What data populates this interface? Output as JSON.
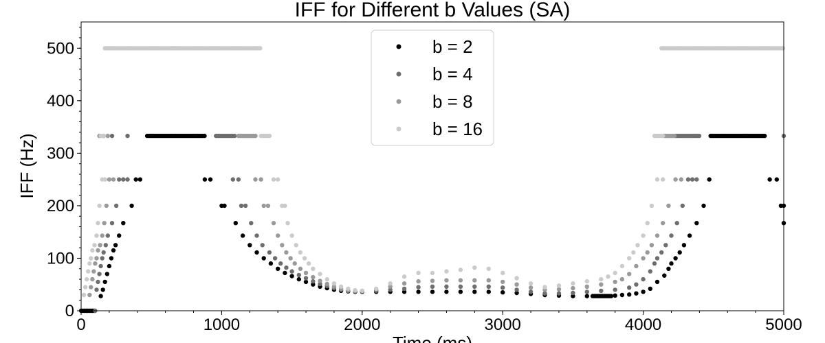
{
  "chart_data": {
    "type": "scatter",
    "title": "IFF for Different b Values (SA)",
    "xlabel": "Time (ms)",
    "ylabel": "IFF (Hz)",
    "xlim": [
      0,
      5000
    ],
    "ylim": [
      0,
      550
    ],
    "xticks": [
      0,
      1000,
      2000,
      3000,
      4000,
      5000
    ],
    "yticks": [
      0,
      100,
      200,
      300,
      400,
      500
    ],
    "grid": false,
    "legend_position": "top-center",
    "series": [
      {
        "name": "b = 2",
        "color": "#000000",
        "segments": [
          {
            "x0": 0,
            "x1": 100,
            "y": 0
          },
          {
            "x0": 470,
            "x1": 880,
            "y": 333
          },
          {
            "x0": 3640,
            "x1": 3780,
            "y": 28
          },
          {
            "x0": 4480,
            "x1": 4870,
            "y": 333
          }
        ],
        "points": [
          [
            140,
            28
          ],
          [
            155,
            40
          ],
          [
            170,
            55
          ],
          [
            185,
            70
          ],
          [
            200,
            85
          ],
          [
            215,
            100
          ],
          [
            230,
            115
          ],
          [
            245,
            125
          ],
          [
            270,
            143
          ],
          [
            300,
            167
          ],
          [
            360,
            200
          ],
          [
            390,
            250
          ],
          [
            420,
            250
          ],
          [
            880,
            250
          ],
          [
            920,
            250
          ],
          [
            1000,
            200
          ],
          [
            1020,
            200
          ],
          [
            1100,
            167
          ],
          [
            1150,
            143
          ],
          [
            1200,
            125
          ],
          [
            1250,
            111
          ],
          [
            1300,
            100
          ],
          [
            1350,
            90
          ],
          [
            1400,
            80
          ],
          [
            1450,
            72
          ],
          [
            1500,
            66
          ],
          [
            1550,
            60
          ],
          [
            1600,
            55
          ],
          [
            1650,
            50
          ],
          [
            1700,
            46
          ],
          [
            1750,
            43
          ],
          [
            1800,
            40
          ],
          [
            1850,
            38
          ],
          [
            1900,
            37
          ],
          [
            1950,
            36
          ],
          [
            2000,
            36
          ],
          [
            2100,
            36
          ],
          [
            2200,
            36
          ],
          [
            2300,
            36
          ],
          [
            2400,
            36
          ],
          [
            2500,
            36
          ],
          [
            2600,
            36
          ],
          [
            2700,
            36
          ],
          [
            2800,
            36
          ],
          [
            2900,
            36
          ],
          [
            3000,
            35
          ],
          [
            3100,
            34
          ],
          [
            3200,
            32
          ],
          [
            3300,
            30
          ],
          [
            3400,
            29
          ],
          [
            3500,
            28
          ],
          [
            3600,
            28
          ],
          [
            3800,
            29
          ],
          [
            3850,
            30
          ],
          [
            3900,
            31
          ],
          [
            3950,
            33
          ],
          [
            4000,
            36
          ],
          [
            4050,
            42
          ],
          [
            4100,
            55
          ],
          [
            4150,
            67
          ],
          [
            4180,
            80
          ],
          [
            4200,
            90
          ],
          [
            4230,
            100
          ],
          [
            4260,
            111
          ],
          [
            4290,
            125
          ],
          [
            4330,
            143
          ],
          [
            4380,
            167
          ],
          [
            4430,
            200
          ],
          [
            4470,
            250
          ],
          [
            4900,
            250
          ],
          [
            4950,
            250
          ],
          [
            4980,
            200
          ],
          [
            5000,
            200
          ],
          [
            5000,
            167
          ]
        ]
      },
      {
        "name": "b = 4",
        "color": "#6e6e6e",
        "segments": [
          {
            "x0": 960,
            "x1": 1100,
            "y": 333
          },
          {
            "x0": 4230,
            "x1": 4400,
            "y": 333
          }
        ],
        "points": [
          [
            100,
            0
          ],
          [
            110,
            40
          ],
          [
            120,
            55
          ],
          [
            130,
            70
          ],
          [
            140,
            85
          ],
          [
            150,
            100
          ],
          [
            160,
            111
          ],
          [
            175,
            125
          ],
          [
            190,
            143
          ],
          [
            220,
            167
          ],
          [
            250,
            200
          ],
          [
            270,
            250
          ],
          [
            300,
            250
          ],
          [
            330,
            250
          ],
          [
            160,
            333
          ],
          [
            220,
            333
          ],
          [
            330,
            333
          ],
          [
            1080,
            250
          ],
          [
            1120,
            250
          ],
          [
            1140,
            200
          ],
          [
            1170,
            200
          ],
          [
            1210,
            167
          ],
          [
            1250,
            143
          ],
          [
            1290,
            125
          ],
          [
            1340,
            111
          ],
          [
            1380,
            100
          ],
          [
            1420,
            90
          ],
          [
            1460,
            82
          ],
          [
            1500,
            75
          ],
          [
            1550,
            68
          ],
          [
            1600,
            62
          ],
          [
            1650,
            56
          ],
          [
            1700,
            51
          ],
          [
            1750,
            47
          ],
          [
            1800,
            43
          ],
          [
            1850,
            40
          ],
          [
            1900,
            38
          ],
          [
            1950,
            37
          ],
          [
            2000,
            37
          ],
          [
            2100,
            38
          ],
          [
            2200,
            40
          ],
          [
            2300,
            42
          ],
          [
            2400,
            45
          ],
          [
            2500,
            46
          ],
          [
            2600,
            46
          ],
          [
            2700,
            46
          ],
          [
            2800,
            46
          ],
          [
            2900,
            46
          ],
          [
            3000,
            44
          ],
          [
            3100,
            40
          ],
          [
            3200,
            36
          ],
          [
            3300,
            33
          ],
          [
            3400,
            33
          ],
          [
            3500,
            34
          ],
          [
            3600,
            36
          ],
          [
            3700,
            38
          ],
          [
            3800,
            40
          ],
          [
            3900,
            44
          ],
          [
            3950,
            50
          ],
          [
            4000,
            60
          ],
          [
            4050,
            75
          ],
          [
            4080,
            90
          ],
          [
            4100,
            100
          ],
          [
            4130,
            111
          ],
          [
            4160,
            125
          ],
          [
            4200,
            143
          ],
          [
            4240,
            167
          ],
          [
            4280,
            200
          ],
          [
            4320,
            250
          ],
          [
            4350,
            250
          ],
          [
            4380,
            250
          ],
          [
            5000,
            333
          ]
        ]
      },
      {
        "name": "b = 8",
        "color": "#9a9a9a",
        "segments": [
          {
            "x0": 1120,
            "x1": 1250,
            "y": 333
          },
          {
            "x0": 4150,
            "x1": 4230,
            "y": 333
          }
        ],
        "points": [
          [
            60,
            30
          ],
          [
            70,
            45
          ],
          [
            80,
            60
          ],
          [
            90,
            75
          ],
          [
            100,
            90
          ],
          [
            110,
            100
          ],
          [
            120,
            115
          ],
          [
            135,
            125
          ],
          [
            150,
            143
          ],
          [
            165,
            167
          ],
          [
            180,
            200
          ],
          [
            200,
            250
          ],
          [
            230,
            250
          ],
          [
            130,
            333
          ],
          [
            160,
            333
          ],
          [
            190,
            333
          ],
          [
            1240,
            250
          ],
          [
            1280,
            250
          ],
          [
            1300,
            200
          ],
          [
            1330,
            200
          ],
          [
            1370,
            167
          ],
          [
            1400,
            143
          ],
          [
            1430,
            125
          ],
          [
            1460,
            111
          ],
          [
            1490,
            100
          ],
          [
            1520,
            90
          ],
          [
            1560,
            80
          ],
          [
            1600,
            72
          ],
          [
            1650,
            64
          ],
          [
            1700,
            57
          ],
          [
            1750,
            51
          ],
          [
            1800,
            46
          ],
          [
            1850,
            42
          ],
          [
            1900,
            39
          ],
          [
            1950,
            38
          ],
          [
            2000,
            38
          ],
          [
            2100,
            41
          ],
          [
            2200,
            46
          ],
          [
            2300,
            52
          ],
          [
            2400,
            56
          ],
          [
            2500,
            57
          ],
          [
            2600,
            58
          ],
          [
            2700,
            58
          ],
          [
            2800,
            58
          ],
          [
            2900,
            58
          ],
          [
            3000,
            55
          ],
          [
            3100,
            50
          ],
          [
            3200,
            44
          ],
          [
            3300,
            40
          ],
          [
            3400,
            41
          ],
          [
            3500,
            43
          ],
          [
            3600,
            46
          ],
          [
            3700,
            50
          ],
          [
            3800,
            55
          ],
          [
            3850,
            60
          ],
          [
            3900,
            70
          ],
          [
            3950,
            85
          ],
          [
            4000,
            100
          ],
          [
            4030,
            111
          ],
          [
            4060,
            125
          ],
          [
            4100,
            143
          ],
          [
            4140,
            167
          ],
          [
            4180,
            200
          ],
          [
            4230,
            250
          ],
          [
            4270,
            250
          ]
        ]
      },
      {
        "name": "b = 16",
        "color": "#cbcbcb",
        "segments": [
          {
            "x0": 170,
            "x1": 1280,
            "y": 500
          },
          {
            "x0": 1280,
            "x1": 1340,
            "y": 333
          },
          {
            "x0": 4130,
            "x1": 5000,
            "y": 500
          },
          {
            "x0": 4080,
            "x1": 4150,
            "y": 333
          }
        ],
        "points": [
          [
            20,
            30
          ],
          [
            30,
            45
          ],
          [
            40,
            60
          ],
          [
            50,
            75
          ],
          [
            60,
            90
          ],
          [
            70,
            100
          ],
          [
            80,
            115
          ],
          [
            95,
            125
          ],
          [
            110,
            143
          ],
          [
            120,
            167
          ],
          [
            130,
            200
          ],
          [
            150,
            250
          ],
          [
            170,
            250
          ],
          [
            140,
            333
          ],
          [
            160,
            333
          ],
          [
            1370,
            250
          ],
          [
            1400,
            250
          ],
          [
            1430,
            200
          ],
          [
            1450,
            200
          ],
          [
            1470,
            167
          ],
          [
            1500,
            143
          ],
          [
            1530,
            125
          ],
          [
            1560,
            111
          ],
          [
            1590,
            100
          ],
          [
            1620,
            90
          ],
          [
            1650,
            80
          ],
          [
            1700,
            70
          ],
          [
            1750,
            60
          ],
          [
            1800,
            52
          ],
          [
            1850,
            46
          ],
          [
            1900,
            42
          ],
          [
            1950,
            39
          ],
          [
            2000,
            38
          ],
          [
            2100,
            42
          ],
          [
            2200,
            52
          ],
          [
            2300,
            65
          ],
          [
            2400,
            72
          ],
          [
            2500,
            72
          ],
          [
            2600,
            75
          ],
          [
            2700,
            78
          ],
          [
            2800,
            82
          ],
          [
            2900,
            80
          ],
          [
            3000,
            72
          ],
          [
            3100,
            62
          ],
          [
            3200,
            52
          ],
          [
            3300,
            45
          ],
          [
            3400,
            48
          ],
          [
            3500,
            52
          ],
          [
            3600,
            56
          ],
          [
            3700,
            60
          ],
          [
            3750,
            65
          ],
          [
            3800,
            72
          ],
          [
            3850,
            85
          ],
          [
            3900,
            100
          ],
          [
            3930,
            111
          ],
          [
            3960,
            125
          ],
          [
            4000,
            143
          ],
          [
            4030,
            167
          ],
          [
            4060,
            200
          ],
          [
            4100,
            250
          ],
          [
            4140,
            250
          ]
        ]
      }
    ]
  }
}
